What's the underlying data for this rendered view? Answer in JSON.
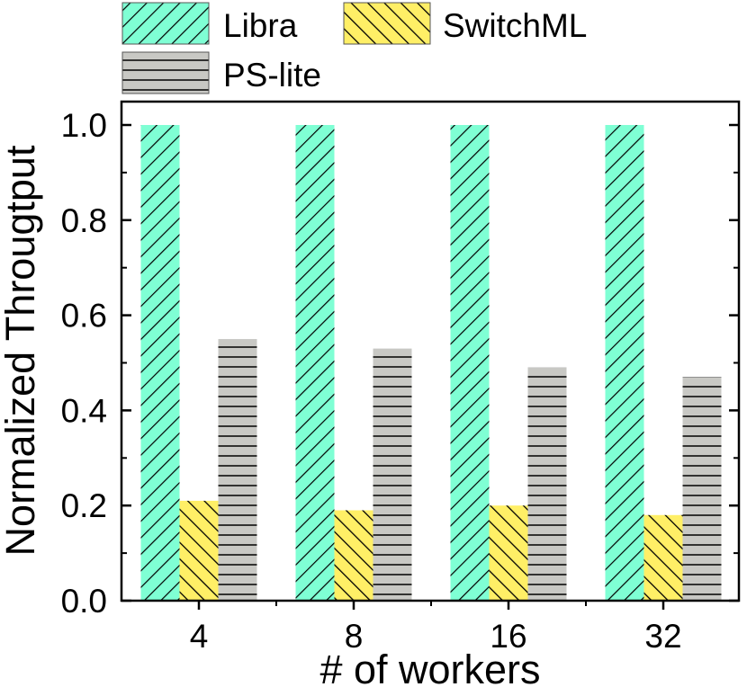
{
  "chart_data": {
    "type": "bar",
    "title": "",
    "xlabel": "# of workers",
    "ylabel": "Normalized Througtput",
    "categories": [
      "4",
      "8",
      "16",
      "32"
    ],
    "ylim": [
      0,
      1.0
    ],
    "yticks": [
      "0.0",
      "0.2",
      "0.4",
      "0.6",
      "0.8",
      "1.0"
    ],
    "series": [
      {
        "name": "Libra",
        "values": [
          1.0,
          1.0,
          1.0,
          1.0
        ],
        "color": "#7fffd4",
        "pattern": "diagonal-forward"
      },
      {
        "name": "SwitchML",
        "values": [
          0.21,
          0.19,
          0.2,
          0.18
        ],
        "color": "#ffef66",
        "pattern": "diagonal-backward"
      },
      {
        "name": "PS-lite",
        "values": [
          0.55,
          0.53,
          0.49,
          0.47
        ],
        "color": "#c8c8c4",
        "pattern": "horizontal"
      }
    ],
    "grid": false,
    "legend_position": "top"
  }
}
